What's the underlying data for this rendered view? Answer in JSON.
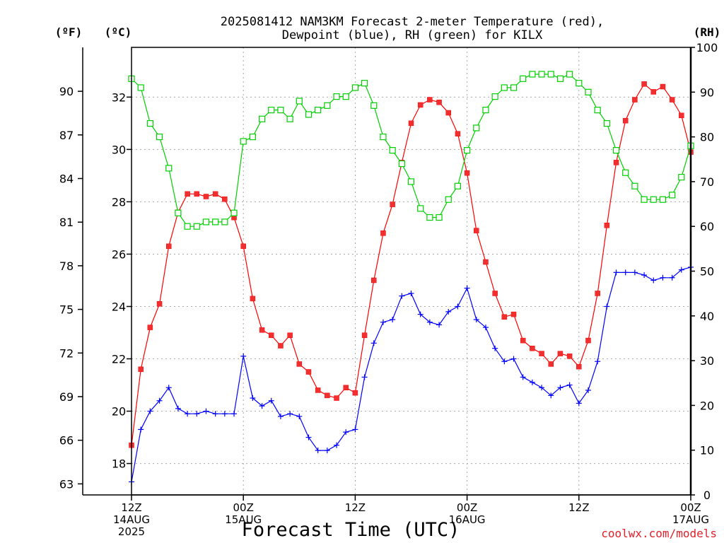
{
  "chart_data": {
    "type": "line",
    "title": [
      "2025081412 NAM3KM Forecast 2-meter Temperature (red),",
      "Dewpoint (blue), RH (green) for KILX"
    ],
    "xlabel": "Forecast Time (UTC)",
    "left_f_unit": "(ºF)",
    "left_c_unit": "(ºC)",
    "right_unit": "(RH)",
    "credit": "coolwx.com/models",
    "grid": true,
    "x_ticks": [
      {
        "hour": 0,
        "lines": [
          "12Z",
          "14AUG",
          "2025"
        ]
      },
      {
        "hour": 12,
        "lines": [
          "00Z",
          "15AUG"
        ]
      },
      {
        "hour": 24,
        "lines": [
          "12Z"
        ]
      },
      {
        "hour": 36,
        "lines": [
          "00Z",
          "16AUG"
        ]
      },
      {
        "hour": 48,
        "lines": [
          "12Z"
        ]
      },
      {
        "hour": 60,
        "lines": [
          "00Z",
          "17AUG"
        ]
      }
    ],
    "x_range": [
      0,
      60
    ],
    "x_unit": "forecast hour from 2025-08-14 12Z",
    "celsius_range": [
      16.8,
      33.9
    ],
    "celsius_ticks": [
      18,
      20,
      22,
      24,
      26,
      28,
      30,
      32
    ],
    "fahrenheit_ticks": [
      63,
      66,
      69,
      72,
      75,
      78,
      81,
      84,
      87,
      90
    ],
    "rh_range": [
      0,
      100
    ],
    "rh_ticks": [
      0,
      10,
      20,
      30,
      40,
      50,
      60,
      70,
      80,
      90,
      100
    ],
    "series": [
      {
        "name": "Temperature",
        "color": "#ff0000",
        "marker": "filled-square",
        "axis": "celsius",
        "x": [
          0,
          1,
          2,
          3,
          4,
          5,
          6,
          7,
          8,
          9,
          10,
          11,
          12,
          13,
          14,
          15,
          16,
          17,
          18,
          19,
          20,
          21,
          22,
          23,
          24,
          25,
          26,
          27,
          28,
          29,
          30,
          31,
          32,
          33,
          34,
          35,
          36,
          37,
          38,
          39,
          40,
          41,
          42,
          43,
          44,
          45,
          46,
          47,
          48,
          49,
          50,
          51,
          52,
          53,
          54,
          55,
          56,
          57,
          58,
          59,
          60
        ],
        "values": [
          18.7,
          21.6,
          23.2,
          24.1,
          26.3,
          27.6,
          28.3,
          28.3,
          28.2,
          28.3,
          28.1,
          27.4,
          26.3,
          24.3,
          23.1,
          22.9,
          22.5,
          22.9,
          21.8,
          21.5,
          20.8,
          20.6,
          20.5,
          20.9,
          20.7,
          22.9,
          25.0,
          26.8,
          27.9,
          29.5,
          31.0,
          31.7,
          31.9,
          31.8,
          31.4,
          30.6,
          29.1,
          26.9,
          25.7,
          24.5,
          23.6,
          23.7,
          22.7,
          22.4,
          22.2,
          21.8,
          22.2,
          22.1,
          21.7,
          22.7,
          24.5,
          27.1,
          29.5,
          31.1,
          31.9,
          32.5,
          32.2,
          32.4,
          31.9,
          31.3,
          29.9
        ]
      },
      {
        "name": "Dewpoint",
        "color": "#0000ff",
        "marker": "plus",
        "axis": "celsius",
        "x": [
          0,
          1,
          2,
          3,
          4,
          5,
          6,
          7,
          8,
          9,
          10,
          11,
          12,
          13,
          14,
          15,
          16,
          17,
          18,
          19,
          20,
          21,
          22,
          23,
          24,
          25,
          26,
          27,
          28,
          29,
          30,
          31,
          32,
          33,
          34,
          35,
          36,
          37,
          38,
          39,
          40,
          41,
          42,
          43,
          44,
          45,
          46,
          47,
          48,
          49,
          50,
          51,
          52,
          53,
          54,
          55,
          56,
          57,
          58,
          59,
          60
        ],
        "values": [
          17.3,
          19.3,
          20.0,
          20.4,
          20.9,
          20.1,
          19.9,
          19.9,
          20.0,
          19.9,
          19.9,
          19.9,
          22.1,
          20.5,
          20.2,
          20.4,
          19.8,
          19.9,
          19.8,
          19.0,
          18.5,
          18.5,
          18.7,
          19.2,
          19.3,
          21.3,
          22.6,
          23.4,
          23.5,
          24.4,
          24.5,
          23.7,
          23.4,
          23.3,
          23.8,
          24.0,
          24.7,
          23.5,
          23.2,
          22.4,
          21.9,
          22.0,
          21.3,
          21.1,
          20.9,
          20.6,
          20.9,
          21.0,
          20.3,
          20.8,
          21.9,
          24.0,
          25.3,
          25.3,
          25.3,
          25.2,
          25.0,
          25.1,
          25.1,
          25.4,
          25.5
        ]
      },
      {
        "name": "RH",
        "color": "#00d000",
        "marker": "hollow-square",
        "axis": "rh",
        "x": [
          0,
          1,
          2,
          3,
          4,
          5,
          6,
          7,
          8,
          9,
          10,
          11,
          12,
          13,
          14,
          15,
          16,
          17,
          18,
          19,
          20,
          21,
          22,
          23,
          24,
          25,
          26,
          27,
          28,
          29,
          30,
          31,
          32,
          33,
          34,
          35,
          36,
          37,
          38,
          39,
          40,
          41,
          42,
          43,
          44,
          45,
          46,
          47,
          48,
          49,
          50,
          51,
          52,
          53,
          54,
          55,
          56,
          57,
          58,
          59,
          60
        ],
        "values": [
          93,
          91,
          83,
          80,
          73,
          63,
          60,
          60,
          61,
          61,
          61,
          63,
          79,
          80,
          84,
          86,
          86,
          84,
          88,
          85,
          86,
          87,
          89,
          89,
          91,
          92,
          87,
          80,
          77,
          74,
          70,
          64,
          62,
          62,
          66,
          69,
          77,
          82,
          86,
          89,
          91,
          91,
          93,
          94,
          94,
          94,
          93,
          94,
          92,
          90,
          86,
          83,
          77,
          72,
          69,
          66,
          66,
          66,
          67,
          71,
          78
        ]
      }
    ]
  }
}
